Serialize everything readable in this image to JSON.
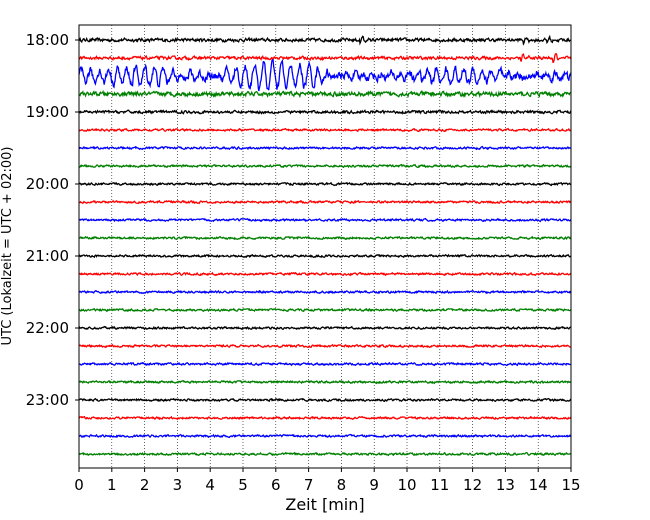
{
  "chart_data": {
    "type": "line",
    "title": "",
    "xlabel": "Zeit  [min]",
    "ylabel": "UTC (Lokalzeit = UTC + 02:00)",
    "xlim": [
      0,
      15
    ],
    "x_ticks": [
      0,
      1,
      2,
      3,
      4,
      5,
      6,
      7,
      8,
      9,
      10,
      11,
      12,
      13,
      14,
      15
    ],
    "y_tick_labels": [
      "18:00",
      "19:00",
      "20:00",
      "21:00",
      "22:00",
      "23:00"
    ],
    "grid": "vertical dotted",
    "line_colors": [
      "#000000",
      "#ff0000",
      "#0000ff",
      "#008000"
    ],
    "series": [
      {
        "start": "18:00",
        "amplitude": 2.4,
        "events": [
          {
            "t": 8.6,
            "amp": 4
          },
          {
            "t": 13.6,
            "amp": 3
          },
          {
            "t": 14.3,
            "amp": 3
          }
        ]
      },
      {
        "start": "18:15",
        "amplitude": 2.2,
        "events": [
          {
            "t": 13.5,
            "amp": 4
          },
          {
            "t": 14.5,
            "amp": 4
          }
        ]
      },
      {
        "start": "18:30",
        "amplitude": 6.0,
        "swell": [
          {
            "t0": 0.0,
            "t1": 3.5,
            "amp": 6
          },
          {
            "t0": 4.5,
            "t1": 7.5,
            "amp": 11
          },
          {
            "t0": 10.0,
            "t1": 13.0,
            "amp": 5
          }
        ]
      },
      {
        "start": "18:45",
        "amplitude": 3.0
      },
      {
        "start": "19:00",
        "amplitude": 2.0
      },
      {
        "start": "19:15",
        "amplitude": 1.5
      },
      {
        "start": "19:30",
        "amplitude": 1.5
      },
      {
        "start": "19:45",
        "amplitude": 1.5
      },
      {
        "start": "20:00",
        "amplitude": 1.5
      },
      {
        "start": "20:15",
        "amplitude": 1.5
      },
      {
        "start": "20:30",
        "amplitude": 1.5
      },
      {
        "start": "20:45",
        "amplitude": 1.5
      },
      {
        "start": "21:00",
        "amplitude": 1.5
      },
      {
        "start": "21:15",
        "amplitude": 1.5
      },
      {
        "start": "21:30",
        "amplitude": 1.5
      },
      {
        "start": "21:45",
        "amplitude": 1.5
      },
      {
        "start": "22:00",
        "amplitude": 1.5
      },
      {
        "start": "22:15",
        "amplitude": 1.5
      },
      {
        "start": "22:30",
        "amplitude": 1.5
      },
      {
        "start": "22:45",
        "amplitude": 1.5
      },
      {
        "start": "23:00",
        "amplitude": 1.5
      },
      {
        "start": "23:15",
        "amplitude": 1.5
      },
      {
        "start": "23:30",
        "amplitude": 1.5
      },
      {
        "start": "23:45",
        "amplitude": 1.5
      }
    ]
  }
}
